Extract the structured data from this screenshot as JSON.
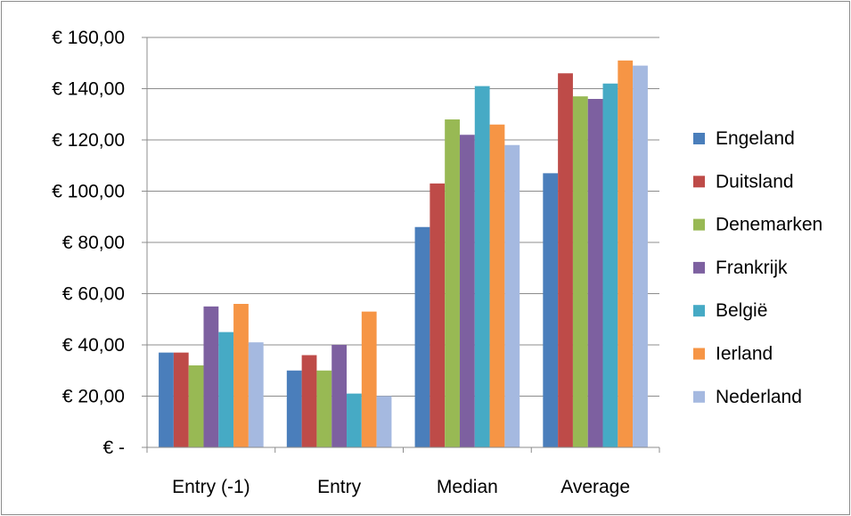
{
  "chart_data": {
    "type": "bar",
    "title": "",
    "xlabel": "",
    "ylabel": "",
    "categories": [
      "Entry (-1)",
      "Entry",
      "Median",
      "Average"
    ],
    "ylim": [
      0,
      160
    ],
    "yticks": [
      0,
      20,
      40,
      60,
      80,
      100,
      120,
      140,
      160
    ],
    "ytick_labels": [
      "€ -",
      "€ 20,00",
      "€ 40,00",
      "€ 60,00",
      "€ 80,00",
      "€ 100,00",
      "€ 120,00",
      "€ 140,00",
      "€ 160,00"
    ],
    "grid": true,
    "legend_position": "right",
    "series": [
      {
        "name": "Engeland",
        "color": "#4a7ebb",
        "values": [
          37,
          30,
          86,
          107
        ]
      },
      {
        "name": "Duitsland",
        "color": "#be4b48",
        "values": [
          37,
          36,
          103,
          146
        ]
      },
      {
        "name": "Denemarken",
        "color": "#98b954",
        "values": [
          32,
          30,
          128,
          137
        ]
      },
      {
        "name": "Frankrijk",
        "color": "#7d60a0",
        "values": [
          55,
          40,
          122,
          136
        ]
      },
      {
        "name": "België",
        "color": "#46aac5",
        "values": [
          45,
          21,
          141,
          142
        ]
      },
      {
        "name": "Ierland",
        "color": "#f69545",
        "values": [
          56,
          53,
          126,
          151
        ]
      },
      {
        "name": "Nederland",
        "color": "#a5b9e0",
        "values": [
          41,
          20,
          118,
          149
        ]
      }
    ]
  }
}
